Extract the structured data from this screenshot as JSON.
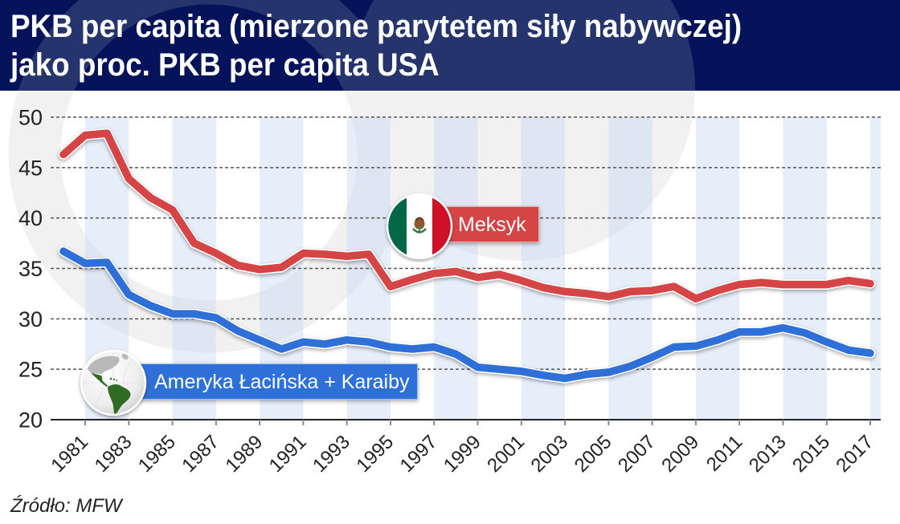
{
  "header": {
    "title_line1": "PKB per capita (mierzone parytetem siły nabywczej)",
    "title_line2": "jako proc. PKB per capita USA"
  },
  "legend": {
    "mexico": {
      "label": "Meksyk",
      "icon": "mexico-flag-icon",
      "color": "#d64545"
    },
    "latam": {
      "label": "Ameryka Łacińska + Karaiby",
      "icon": "latin-america-globe-icon",
      "color": "#2f6fd8"
    }
  },
  "footer": {
    "source": "Źródło: MFW"
  },
  "colors": {
    "header_bg": "#05145a",
    "band": "#e6eefa",
    "mexico_line": "#d64545",
    "latam_line": "#2f6fd8"
  },
  "chart_data": {
    "type": "line",
    "title": "PKB per capita (mierzone parytetem siły nabywczej) jako proc. PKB per capita USA",
    "xlabel": "",
    "ylabel": "",
    "ylim": [
      20,
      50
    ],
    "yticks": [
      20,
      25,
      30,
      35,
      40,
      45,
      50
    ],
    "xticks": [
      1981,
      1983,
      1985,
      1987,
      1989,
      1991,
      1993,
      1995,
      1997,
      1999,
      2001,
      2003,
      2005,
      2007,
      2009,
      2011,
      2013,
      2015,
      2017
    ],
    "grid": "horizontal dotted",
    "legend_position": "inline labels on plot",
    "x": [
      1980,
      1981,
      1982,
      1983,
      1984,
      1985,
      1986,
      1987,
      1988,
      1989,
      1990,
      1991,
      1992,
      1993,
      1994,
      1995,
      1996,
      1997,
      1998,
      1999,
      2000,
      2001,
      2002,
      2003,
      2004,
      2005,
      2006,
      2007,
      2008,
      2009,
      2010,
      2011,
      2012,
      2013,
      2014,
      2015,
      2016,
      2017
    ],
    "series": [
      {
        "name": "Meksyk",
        "color": "#d64545",
        "values": [
          46.3,
          48.2,
          48.4,
          43.9,
          42.0,
          40.8,
          37.5,
          36.5,
          35.3,
          34.9,
          35.1,
          36.5,
          36.4,
          36.2,
          36.4,
          33.2,
          33.9,
          34.5,
          34.7,
          34.1,
          34.4,
          33.8,
          33.1,
          32.7,
          32.5,
          32.2,
          32.7,
          32.8,
          33.2,
          32.0,
          32.8,
          33.4,
          33.6,
          33.4,
          33.4,
          33.4,
          33.8,
          33.5
        ]
      },
      {
        "name": "Ameryka Łacińska + Karaiby",
        "color": "#2f6fd8",
        "values": [
          36.7,
          35.5,
          35.6,
          32.4,
          31.3,
          30.5,
          30.5,
          30.1,
          28.8,
          27.9,
          27.0,
          27.7,
          27.5,
          27.9,
          27.7,
          27.2,
          27.0,
          27.2,
          26.5,
          25.2,
          25.0,
          24.8,
          24.4,
          24.1,
          24.5,
          24.7,
          25.3,
          26.2,
          27.2,
          27.3,
          27.9,
          28.7,
          28.7,
          29.1,
          28.6,
          27.7,
          26.9,
          26.6
        ]
      }
    ],
    "source": "Źródło: MFW"
  }
}
